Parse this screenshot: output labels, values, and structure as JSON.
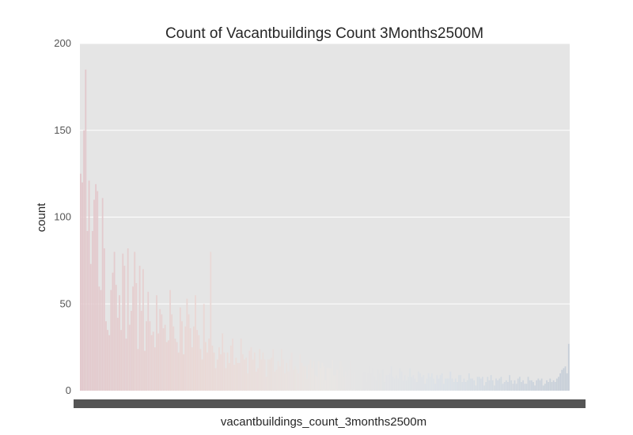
{
  "chart_data": {
    "type": "bar",
    "title": "Count of Vacantbuildings Count 3Months2500M",
    "xlabel": "vacantbuildings_count_3months2500m",
    "ylabel": "count",
    "ylim": [
      0,
      200
    ],
    "yticks": [
      0,
      50,
      100,
      150,
      200
    ],
    "xtick_labels_visible": false,
    "grid": true,
    "legend": "none",
    "bar_count": 290,
    "palette": [
      "#e2c7cb",
      "#ead8d5",
      "#e9e6e4",
      "#dbe1e7",
      "#c6ced8"
    ],
    "background_color": "#e5e5e5",
    "grid_color": "#ffffff",
    "xtick_band_color": "#555555",
    "head_values": [
      125,
      120,
      150,
      185,
      92,
      121,
      73,
      92,
      110,
      119,
      115,
      60,
      58,
      111,
      82,
      40,
      35,
      32,
      58,
      68,
      80,
      61,
      42,
      55,
      35,
      79,
      72,
      30,
      82,
      38,
      46,
      60,
      80,
      62,
      24,
      72,
      46,
      70,
      23,
      40,
      57,
      40,
      32,
      34,
      25,
      55,
      33,
      47,
      44,
      36,
      38,
      28,
      29,
      58,
      44,
      37,
      30,
      28,
      22,
      48,
      40,
      21,
      37,
      53,
      44,
      36,
      25,
      37,
      55,
      35,
      32,
      24,
      18,
      50,
      28,
      22,
      30,
      80,
      26,
      22
    ],
    "tail_values": [
      6,
      5,
      7,
      8,
      10,
      12,
      13,
      14,
      10,
      27
    ]
  }
}
